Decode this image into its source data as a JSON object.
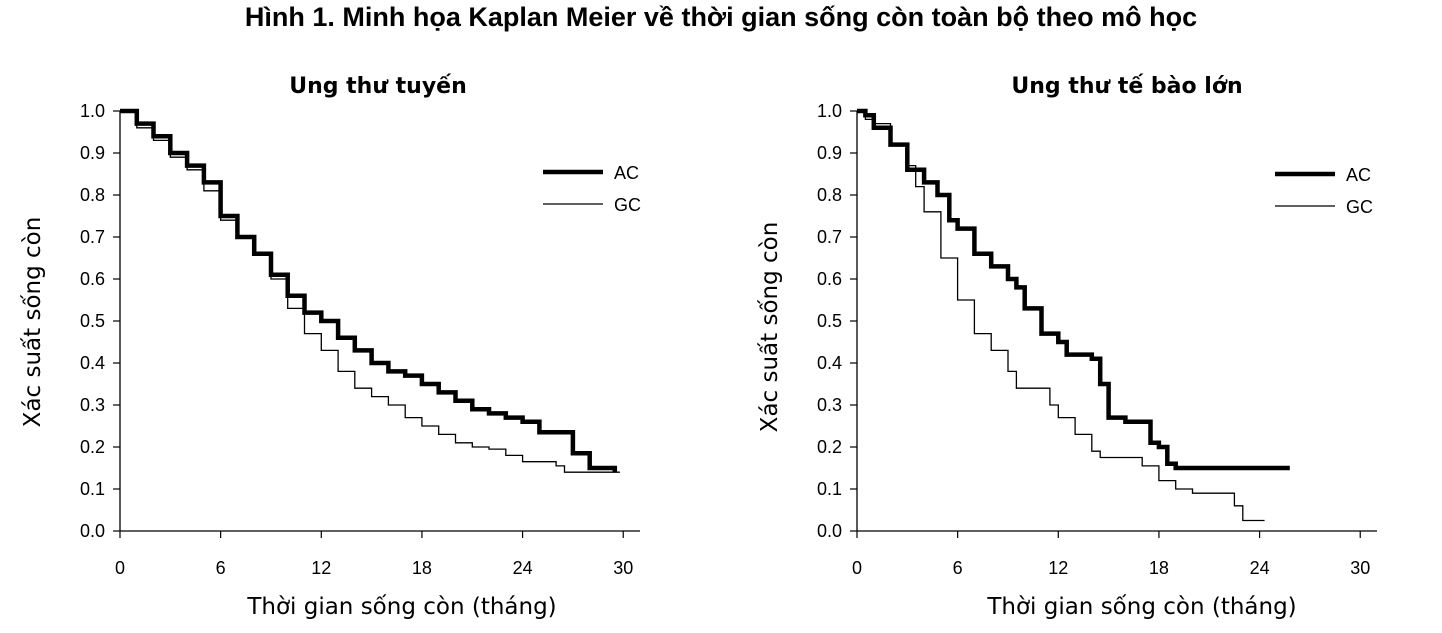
{
  "figure_title": "Hình 1. Minh họa Kaplan Meier về thời gian sống còn toàn bộ theo mô học",
  "chart_data": [
    {
      "type": "line",
      "title": "Ung thư tuyến",
      "xlabel": "Thời gian sống còn (tháng)",
      "ylabel": "Xác suất sống còn",
      "xlim": [
        0,
        31
      ],
      "ylim": [
        0,
        1
      ],
      "xticks": [
        "0",
        "6",
        "12",
        "18",
        "24",
        "30"
      ],
      "yticks": [
        "0.0",
        "0.1",
        "0.2",
        "0.3",
        "0.4",
        "0.5",
        "0.6",
        "0.7",
        "0.8",
        "0.9",
        "1.0"
      ],
      "legend_position": "top-right",
      "series": [
        {
          "name": "AC",
          "style": "thick",
          "color": "#000000",
          "points": [
            [
              0,
              1.0
            ],
            [
              1,
              0.97
            ],
            [
              2,
              0.94
            ],
            [
              3,
              0.9
            ],
            [
              4,
              0.87
            ],
            [
              5,
              0.83
            ],
            [
              6,
              0.75
            ],
            [
              7,
              0.7
            ],
            [
              8,
              0.66
            ],
            [
              9,
              0.61
            ],
            [
              10,
              0.56
            ],
            [
              11,
              0.52
            ],
            [
              12,
              0.5
            ],
            [
              13,
              0.46
            ],
            [
              14,
              0.43
            ],
            [
              15,
              0.4
            ],
            [
              16,
              0.38
            ],
            [
              17,
              0.37
            ],
            [
              18,
              0.35
            ],
            [
              19,
              0.33
            ],
            [
              20,
              0.31
            ],
            [
              21,
              0.29
            ],
            [
              22,
              0.28
            ],
            [
              23,
              0.27
            ],
            [
              24,
              0.26
            ],
            [
              25,
              0.235
            ],
            [
              26.5,
              0.235
            ],
            [
              27,
              0.185
            ],
            [
              28,
              0.15
            ],
            [
              29,
              0.15
            ],
            [
              29.5,
              0.14
            ]
          ]
        },
        {
          "name": "GC",
          "style": "thin",
          "color": "#000000",
          "points": [
            [
              0,
              1.0
            ],
            [
              1,
              0.96
            ],
            [
              2,
              0.93
            ],
            [
              3,
              0.89
            ],
            [
              4,
              0.86
            ],
            [
              5,
              0.81
            ],
            [
              6,
              0.74
            ],
            [
              7,
              0.7
            ],
            [
              8,
              0.66
            ],
            [
              9,
              0.6
            ],
            [
              10,
              0.53
            ],
            [
              11,
              0.47
            ],
            [
              12,
              0.43
            ],
            [
              13,
              0.38
            ],
            [
              14,
              0.34
            ],
            [
              15,
              0.32
            ],
            [
              16,
              0.3
            ],
            [
              17,
              0.27
            ],
            [
              18,
              0.25
            ],
            [
              19,
              0.23
            ],
            [
              20,
              0.21
            ],
            [
              21,
              0.2
            ],
            [
              22,
              0.195
            ],
            [
              23,
              0.18
            ],
            [
              24,
              0.165
            ],
            [
              25,
              0.165
            ],
            [
              26,
              0.155
            ],
            [
              26.5,
              0.14
            ],
            [
              28,
              0.14
            ],
            [
              29,
              0.14
            ],
            [
              29.8,
              0.14
            ]
          ]
        }
      ]
    },
    {
      "type": "line",
      "title": "Ung thư tế bào lớn",
      "xlabel": "Thời gian sống còn (tháng)",
      "ylabel": "Xác suất sống còn",
      "xlim": [
        0,
        31
      ],
      "ylim": [
        0,
        1
      ],
      "xticks": [
        "0",
        "6",
        "12",
        "18",
        "24",
        "30"
      ],
      "yticks": [
        "0.0",
        "0.1",
        "0.2",
        "0.3",
        "0.4",
        "0.5",
        "0.6",
        "0.7",
        "0.8",
        "0.9",
        "1.0"
      ],
      "legend_position": "top-right",
      "series": [
        {
          "name": "AC",
          "style": "thick",
          "color": "#000000",
          "points": [
            [
              0,
              1.0
            ],
            [
              0.5,
              0.99
            ],
            [
              1,
              0.96
            ],
            [
              2,
              0.92
            ],
            [
              3,
              0.86
            ],
            [
              4,
              0.83
            ],
            [
              4.8,
              0.8
            ],
            [
              5.5,
              0.74
            ],
            [
              6,
              0.72
            ],
            [
              7,
              0.66
            ],
            [
              8,
              0.63
            ],
            [
              9,
              0.6
            ],
            [
              9.5,
              0.58
            ],
            [
              10,
              0.53
            ],
            [
              11,
              0.47
            ],
            [
              12,
              0.45
            ],
            [
              12.5,
              0.42
            ],
            [
              14,
              0.41
            ],
            [
              14.5,
              0.35
            ],
            [
              15,
              0.27
            ],
            [
              16,
              0.26
            ],
            [
              17,
              0.26
            ],
            [
              17.5,
              0.21
            ],
            [
              18,
              0.2
            ],
            [
              18.5,
              0.16
            ],
            [
              19,
              0.15
            ],
            [
              22,
              0.15
            ],
            [
              25,
              0.15
            ],
            [
              25.8,
              0.15
            ]
          ]
        },
        {
          "name": "GC",
          "style": "thin",
          "color": "#000000",
          "points": [
            [
              0,
              1.0
            ],
            [
              0.5,
              0.98
            ],
            [
              1,
              0.97
            ],
            [
              2,
              0.92
            ],
            [
              3,
              0.87
            ],
            [
              3.5,
              0.82
            ],
            [
              4,
              0.76
            ],
            [
              5,
              0.65
            ],
            [
              6,
              0.55
            ],
            [
              7,
              0.47
            ],
            [
              8,
              0.43
            ],
            [
              9,
              0.38
            ],
            [
              9.5,
              0.34
            ],
            [
              11,
              0.34
            ],
            [
              11.5,
              0.3
            ],
            [
              12,
              0.27
            ],
            [
              13,
              0.23
            ],
            [
              14,
              0.19
            ],
            [
              14.5,
              0.175
            ],
            [
              16,
              0.175
            ],
            [
              17,
              0.155
            ],
            [
              18,
              0.12
            ],
            [
              19,
              0.1
            ],
            [
              20,
              0.09
            ],
            [
              22,
              0.09
            ],
            [
              22.5,
              0.06
            ],
            [
              23,
              0.025
            ],
            [
              24.3,
              0.025
            ]
          ]
        }
      ]
    }
  ]
}
